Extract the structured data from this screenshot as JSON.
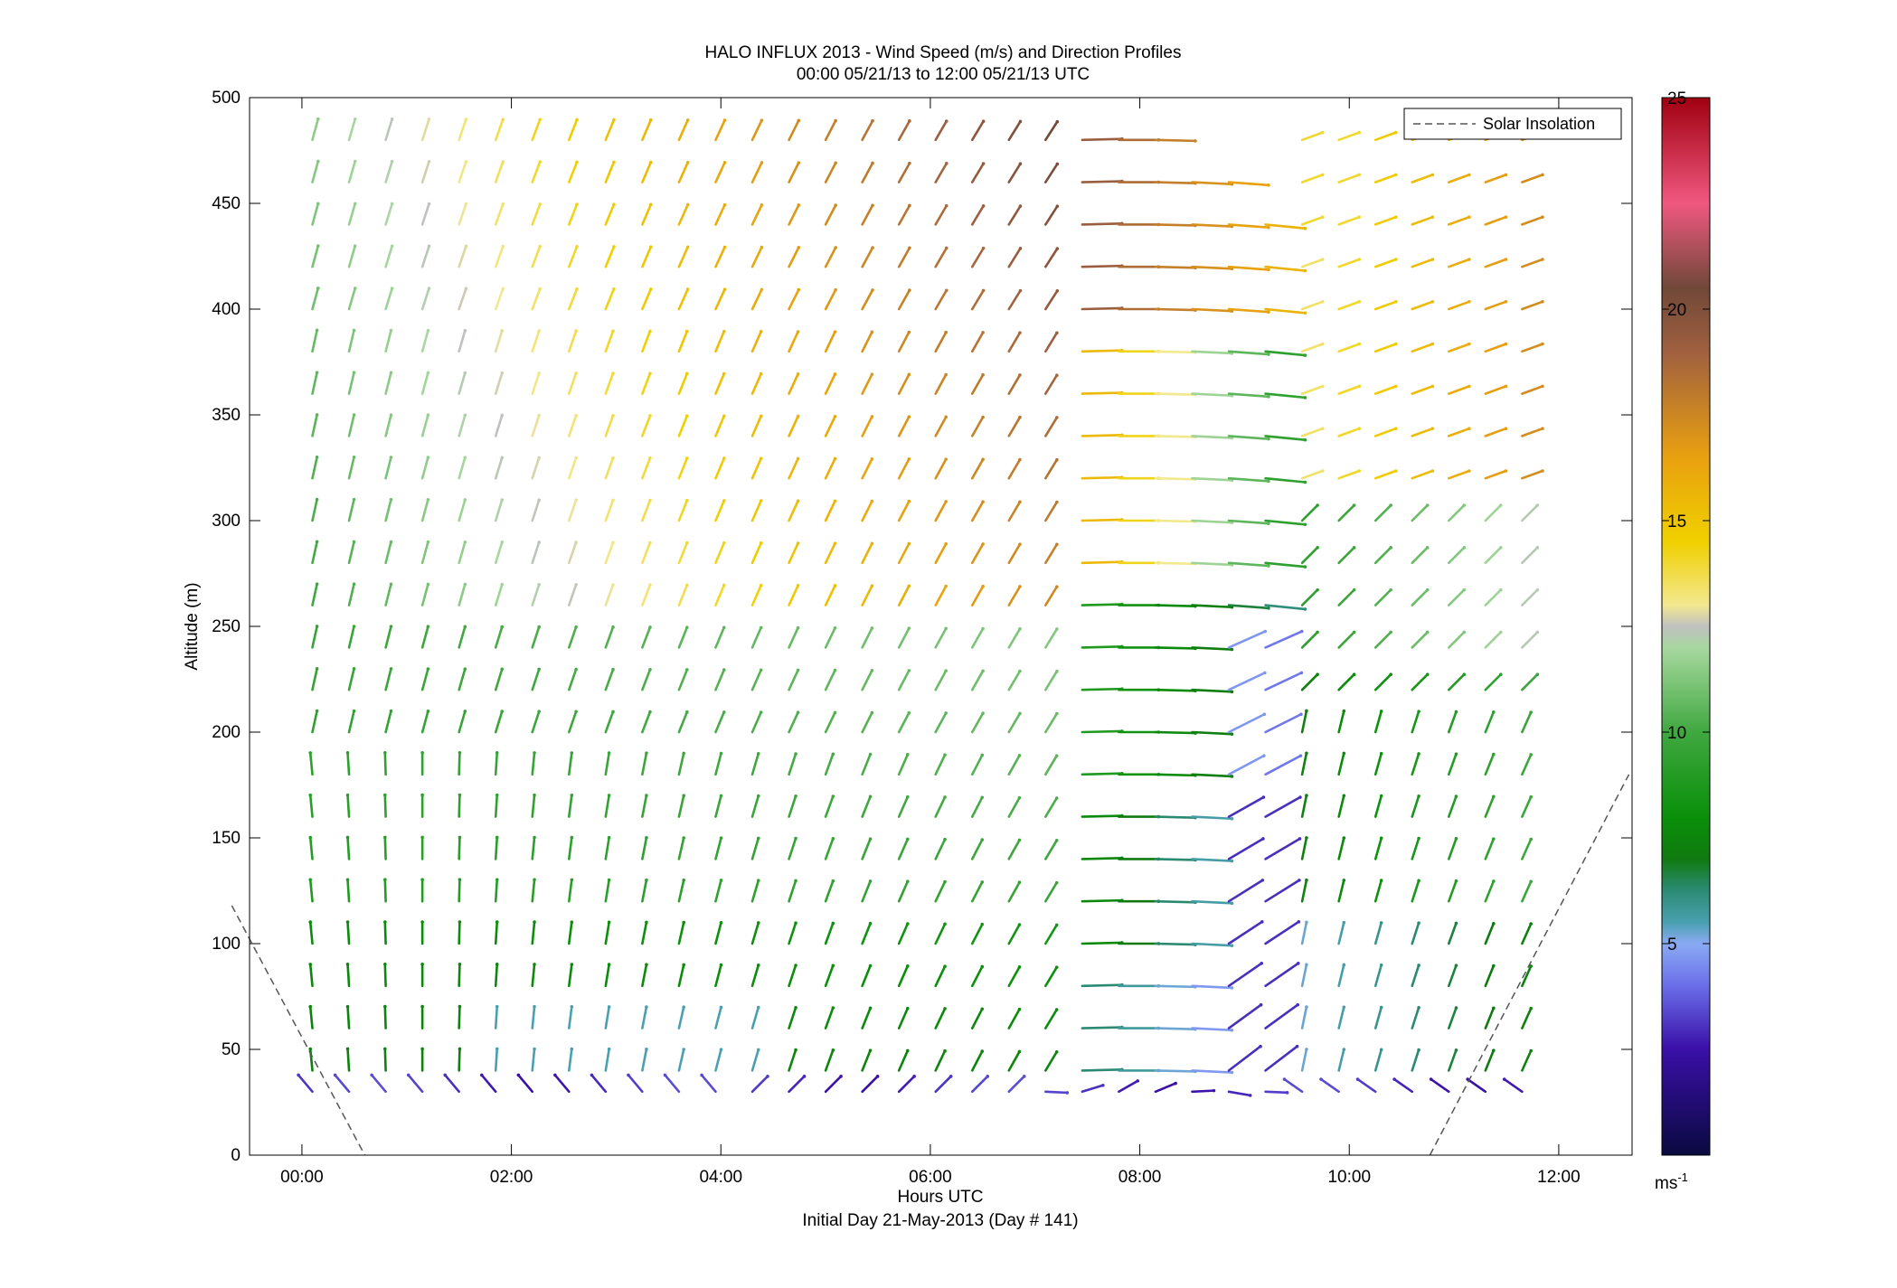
{
  "chart_data": {
    "type": "wind-barb-profile",
    "title": "HALO INFLUX 2013 - Wind Speed (m/s) and Direction Profiles",
    "subtitle": "00:00 05/21/13 to 12:00 05/21/13  UTC",
    "xlabel": "Hours UTC",
    "xlabel_sub": "Initial Day 21-May-2013 (Day # 141)",
    "ylabel": "Altitude (m)",
    "xlim_hours": [
      -0.5,
      12.7
    ],
    "ylim": [
      0,
      500
    ],
    "x_ticks": [
      {
        "value": 0,
        "label": "00:00"
      },
      {
        "value": 2,
        "label": "02:00"
      },
      {
        "value": 4,
        "label": "04:00"
      },
      {
        "value": 6,
        "label": "06:00"
      },
      {
        "value": 8,
        "label": "08:00"
      },
      {
        "value": 10,
        "label": "10:00"
      },
      {
        "value": 12,
        "label": "12:00"
      }
    ],
    "y_ticks": [
      0,
      50,
      100,
      150,
      200,
      250,
      300,
      350,
      400,
      450,
      500
    ],
    "legend": {
      "label": "Solar Insolation",
      "position": "top-right",
      "style": "dashed"
    },
    "solar_insolation_lines": [
      {
        "x": [
          -0.67,
          0.6
        ],
        "y": [
          118,
          0
        ]
      },
      {
        "x": [
          10.77,
          12.67
        ],
        "y": [
          0,
          180
        ]
      }
    ],
    "colorbar": {
      "range": [
        0,
        25
      ],
      "ticks": [
        5,
        10,
        15,
        20,
        25
      ],
      "unit_label": "ms",
      "unit_exponent": "-1",
      "stops": [
        {
          "v": 0,
          "c": "#0a0a40"
        },
        {
          "v": 2.5,
          "c": "#3a0fa8"
        },
        {
          "v": 4,
          "c": "#6a6ee8"
        },
        {
          "v": 5,
          "c": "#8aaaf4"
        },
        {
          "v": 5.5,
          "c": "#4aa0b0"
        },
        {
          "v": 6.3,
          "c": "#2a8a70"
        },
        {
          "v": 7,
          "c": "#107a10"
        },
        {
          "v": 8,
          "c": "#0a900a"
        },
        {
          "v": 10,
          "c": "#40a840"
        },
        {
          "v": 12,
          "c": "#a8d8a0"
        },
        {
          "v": 12.5,
          "c": "#c0c0c0"
        },
        {
          "v": 13,
          "c": "#f2e890"
        },
        {
          "v": 14.5,
          "c": "#f0d000"
        },
        {
          "v": 16.5,
          "c": "#e8a010"
        },
        {
          "v": 19,
          "c": "#a06040"
        },
        {
          "v": 20.5,
          "c": "#704838"
        },
        {
          "v": 22.5,
          "c": "#f05880"
        },
        {
          "v": 25,
          "c": "#a00010"
        }
      ]
    },
    "barb_times_hours": [
      0.1,
      0.45,
      0.8,
      1.15,
      1.5,
      1.85,
      2.2,
      2.55,
      2.9,
      3.25,
      3.6,
      3.95,
      4.3,
      4.65,
      5.0,
      5.35,
      5.7,
      6.05,
      6.4,
      6.75,
      7.1,
      7.45,
      7.8,
      8.15,
      8.5,
      8.85,
      9.2,
      9.55,
      9.9,
      10.25,
      10.6,
      10.95,
      11.3,
      11.65
    ],
    "barb_altitudes_m": [
      30,
      40,
      60,
      80,
      100,
      120,
      140,
      160,
      180,
      200,
      220,
      240,
      260,
      280,
      300,
      320,
      340,
      360,
      380,
      400,
      420,
      440,
      460,
      480
    ]
  }
}
